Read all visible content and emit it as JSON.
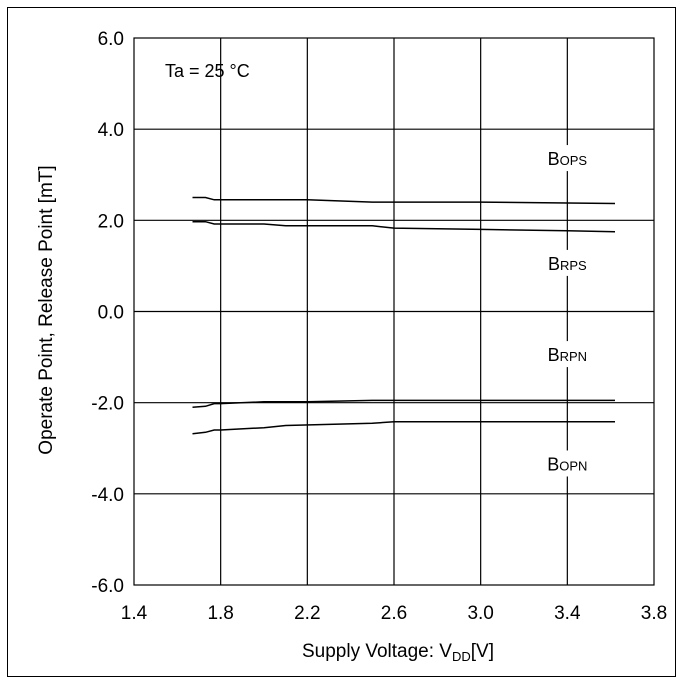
{
  "chart_data": {
    "type": "line",
    "xlabel_main": "Supply Voltage: V",
    "xlabel_sub": "DD",
    "xlabel_tail": "[V]",
    "ylabel": "Operate Point, Release Point [mT]",
    "xlim": [
      1.4,
      3.8
    ],
    "ylim": [
      -6.0,
      6.0
    ],
    "x_ticks": [
      "1.4",
      "1.8",
      "2.2",
      "2.6",
      "3.0",
      "3.4",
      "3.8"
    ],
    "y_ticks": [
      "6.0",
      "4.0",
      "2.0",
      "0.0",
      "-2.0",
      "-4.0",
      "-6.0"
    ],
    "x_tick_values": [
      1.4,
      1.8,
      2.2,
      2.6,
      3.0,
      3.4,
      3.8
    ],
    "y_tick_values": [
      6.0,
      4.0,
      2.0,
      0.0,
      -2.0,
      -4.0,
      -6.0
    ],
    "grid": true,
    "annotation": "Ta = 25 °C",
    "series": [
      {
        "name": "BOPS",
        "label_main": "B",
        "label_sub": "OPS",
        "x": [
          1.67,
          1.73,
          1.77,
          1.8,
          2.0,
          2.2,
          2.5,
          2.6,
          3.0,
          3.4,
          3.62
        ],
        "y": [
          2.5,
          2.5,
          2.45,
          2.45,
          2.45,
          2.45,
          2.4,
          2.4,
          2.4,
          2.38,
          2.37
        ]
      },
      {
        "name": "BRPS",
        "label_main": "B",
        "label_sub": "RPS",
        "x": [
          1.67,
          1.73,
          1.77,
          1.8,
          2.0,
          2.1,
          2.5,
          2.6,
          3.0,
          3.4,
          3.62
        ],
        "y": [
          1.97,
          1.97,
          1.92,
          1.92,
          1.92,
          1.88,
          1.88,
          1.83,
          1.8,
          1.77,
          1.75
        ]
      },
      {
        "name": "BRPN",
        "label_main": "B",
        "label_sub": "RPN",
        "x": [
          1.67,
          1.73,
          1.77,
          1.8,
          2.0,
          2.2,
          2.5,
          2.6,
          3.0,
          3.4,
          3.62
        ],
        "y": [
          -2.1,
          -2.08,
          -2.02,
          -2.02,
          -1.98,
          -1.98,
          -1.95,
          -1.95,
          -1.95,
          -1.95,
          -1.95
        ]
      },
      {
        "name": "BOPN",
        "label_main": "B",
        "label_sub": "OPN",
        "x": [
          1.67,
          1.73,
          1.77,
          1.8,
          2.0,
          2.1,
          2.5,
          2.6,
          3.0,
          3.4,
          3.62
        ],
        "y": [
          -2.68,
          -2.65,
          -2.6,
          -2.6,
          -2.55,
          -2.5,
          -2.45,
          -2.42,
          -2.42,
          -2.42,
          -2.42
        ]
      }
    ],
    "label_positions_y": [
      3.3,
      1.0,
      -1.0,
      -3.4
    ],
    "label_x": 3.4,
    "colors": {
      "line": "#000000",
      "background": "#ffffff"
    }
  }
}
